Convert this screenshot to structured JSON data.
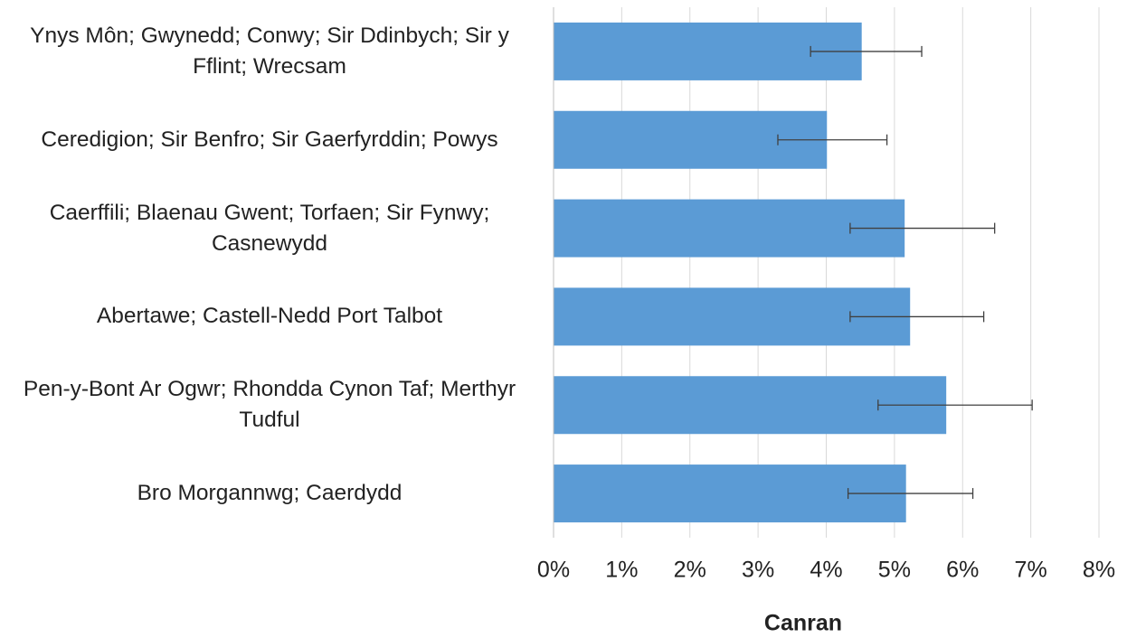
{
  "chart_data": {
    "type": "bar",
    "orientation": "horizontal",
    "x_label": "Canran",
    "categories": [
      "Ynys Môn; Gwynedd; Conwy; Sir Ddinbych; Sir y Fflint; Wrecsam",
      "Ceredigion; Sir Benfro; Sir Gaerfyrddin; Powys",
      "Caerffili; Blaenau Gwent; Torfaen; Sir Fynwy; Casnewydd",
      "Abertawe; Castell-Nedd Port Talbot",
      "Pen-y-Bont Ar Ogwr; Rhondda Cynon Taf; Merthyr Tudful",
      "Bro Morgannwg; Caerdydd"
    ],
    "values": [
      4.52,
      4.01,
      5.15,
      5.23,
      5.76,
      5.17
    ],
    "lower": [
      3.77,
      3.29,
      4.35,
      4.35,
      4.76,
      4.32
    ],
    "upper": [
      5.4,
      4.89,
      6.47,
      6.31,
      7.02,
      6.15
    ],
    "color": "#5b9bd5",
    "xlim": [
      0,
      8
    ],
    "xticks": [
      {
        "value": 0,
        "label": "0%"
      },
      {
        "value": 1,
        "label": "1%"
      },
      {
        "value": 2,
        "label": "2%"
      },
      {
        "value": 3,
        "label": "3%"
      },
      {
        "value": 4,
        "label": "4%"
      },
      {
        "value": 5,
        "label": "5%"
      },
      {
        "value": 6,
        "label": "6%"
      },
      {
        "value": 7,
        "label": "7%"
      },
      {
        "value": 8,
        "label": "8%"
      }
    ],
    "grid": true
  }
}
